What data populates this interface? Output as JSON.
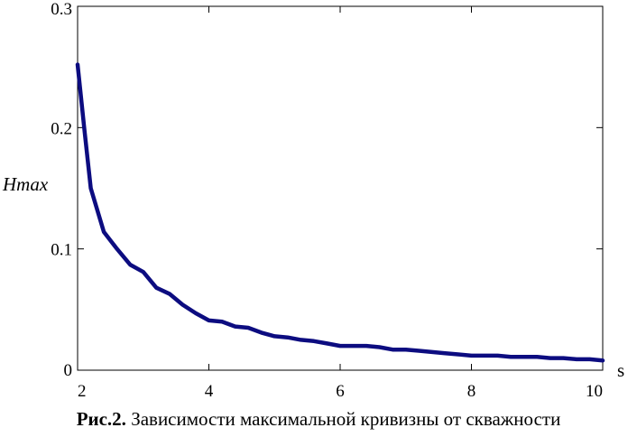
{
  "chart_data": {
    "type": "line",
    "xlabel": "s",
    "ylabel": "Hmax",
    "xlim": [
      2,
      10
    ],
    "ylim": [
      0,
      0.3
    ],
    "x_ticks": [
      "2",
      "4",
      "6",
      "8",
      "10"
    ],
    "y_ticks": [
      "0",
      "0.1",
      "0.2",
      "0.3"
    ],
    "line_color": "#0c0c80",
    "grid": false,
    "series": [
      {
        "x": [
          2.0,
          2.1,
          2.2,
          2.4,
          2.6,
          2.8,
          3.0,
          3.2,
          3.4,
          3.6,
          3.8,
          4.0,
          4.2,
          4.4,
          4.6,
          4.8,
          5.0,
          5.2,
          5.4,
          5.6,
          5.8,
          6.0,
          6.2,
          6.4,
          6.6,
          6.8,
          7.0,
          7.2,
          7.4,
          7.6,
          7.8,
          8.0,
          8.2,
          8.4,
          8.6,
          8.8,
          9.0,
          9.2,
          9.4,
          9.6,
          9.8,
          10.0
        ],
        "y": [
          0.252,
          0.2,
          0.15,
          0.114,
          0.1,
          0.087,
          0.081,
          0.068,
          0.063,
          0.054,
          0.047,
          0.041,
          0.04,
          0.036,
          0.035,
          0.031,
          0.028,
          0.027,
          0.025,
          0.024,
          0.022,
          0.02,
          0.02,
          0.02,
          0.019,
          0.017,
          0.017,
          0.016,
          0.015,
          0.014,
          0.013,
          0.012,
          0.012,
          0.012,
          0.011,
          0.011,
          0.011,
          0.01,
          0.01,
          0.009,
          0.009,
          0.008
        ]
      }
    ]
  },
  "caption": {
    "prefix": "Рис.2.",
    "text": " Зависимости максимальной кривизны от скважности"
  }
}
